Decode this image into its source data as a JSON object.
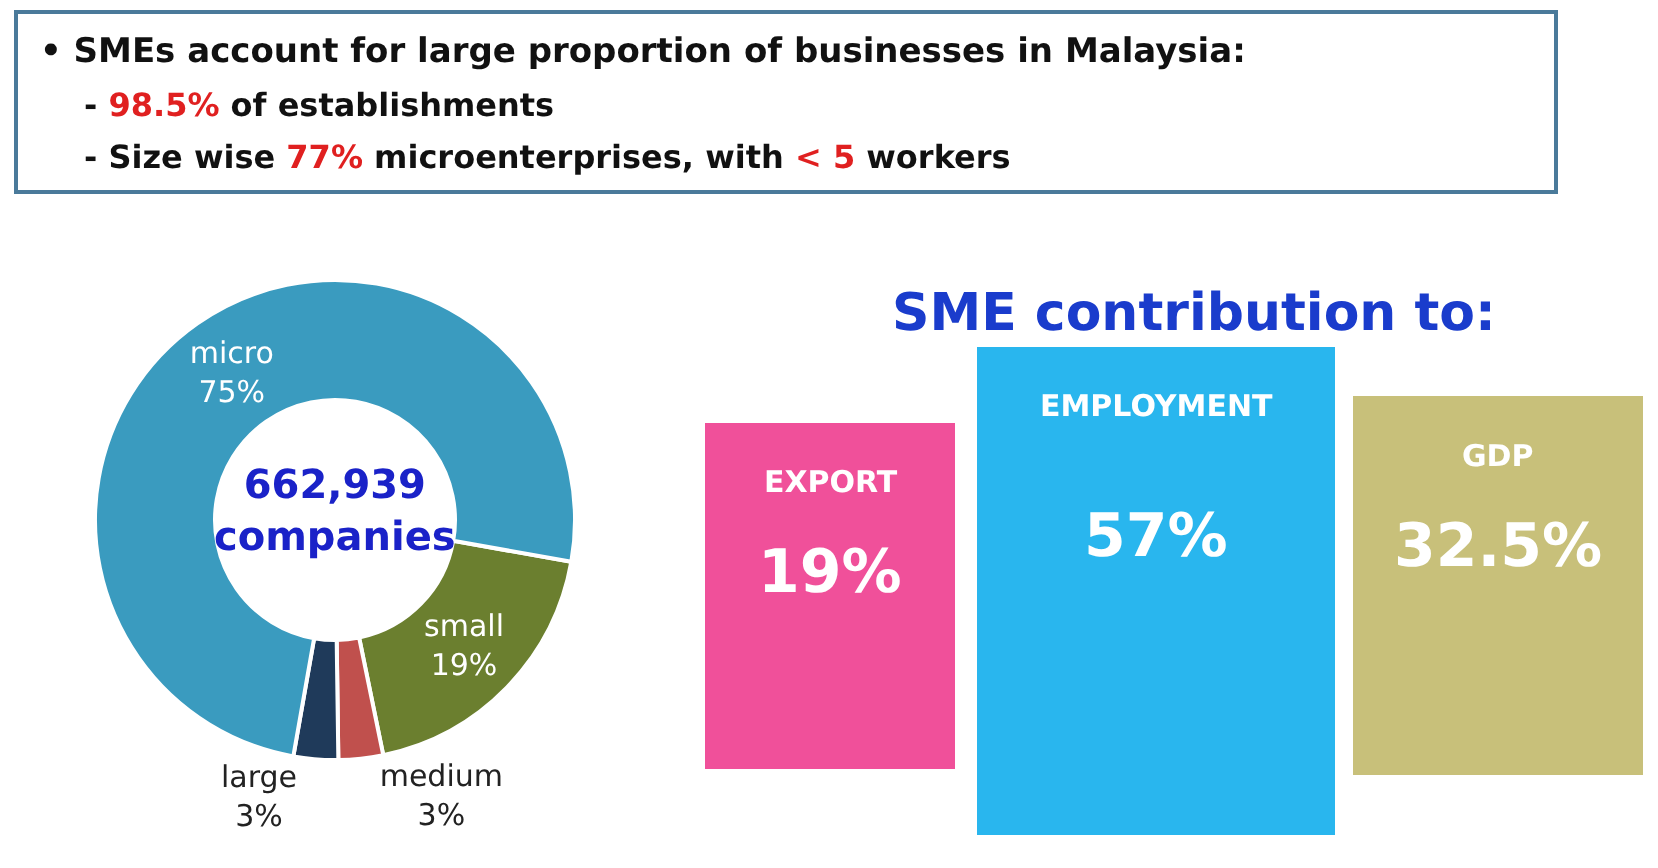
{
  "chart_data": [
    {
      "type": "donut",
      "title": "• SMEs account for large proportion of businesses in Malaysia:",
      "annotations": [
        "- 98.5% of establishments",
        "- Size wise 77% microenterprises, with < 5 workers",
        "662,939 companies"
      ],
      "categories": [
        "small",
        "medium",
        "large",
        "micro"
      ],
      "values": [
        19,
        3,
        3,
        75
      ],
      "value_labels": [
        "19%",
        "3%",
        "3%",
        "75%"
      ],
      "colors": [
        "#6b7f2f",
        "#c0504d",
        "#1f3a5a",
        "#3a9bbf"
      ]
    },
    {
      "type": "other",
      "title": "SME contribution to:",
      "categories": [
        "EXPORT",
        "EMPLOYMENT",
        "GDP"
      ],
      "values": [
        19,
        57,
        32.5
      ],
      "value_labels": [
        "19%",
        "57%",
        "32.5%"
      ],
      "colors": [
        "#f0509a",
        "#29b6ee",
        "#c8c07a"
      ]
    }
  ]
}
